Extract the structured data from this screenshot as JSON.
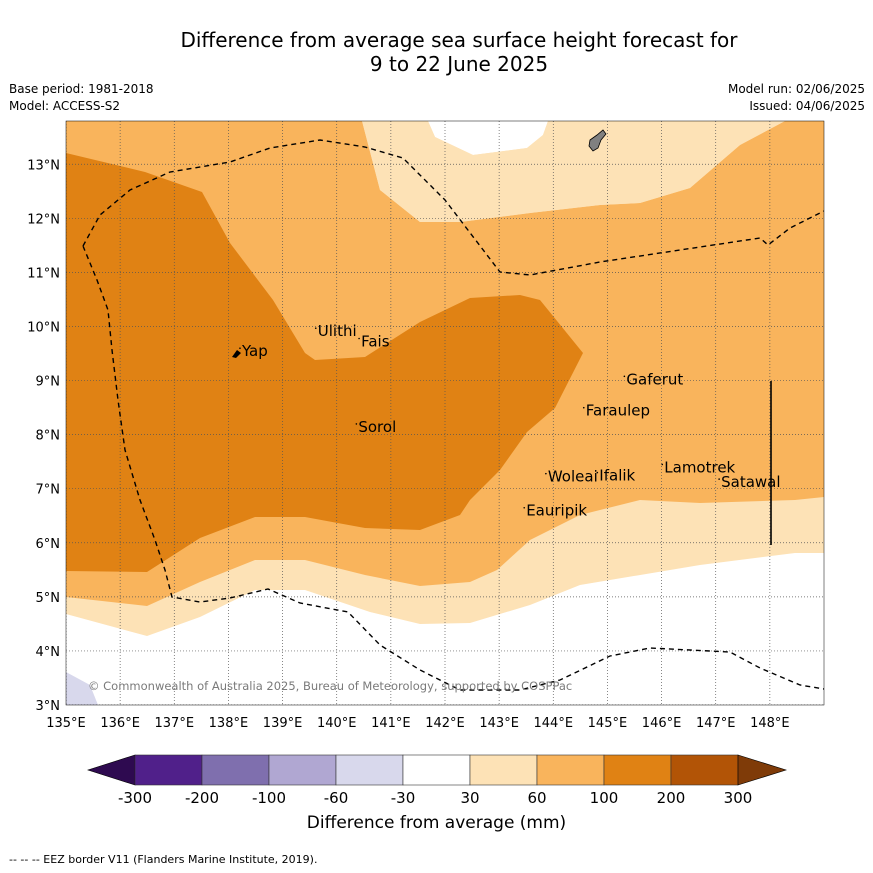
{
  "title_line1": "Difference from average sea surface height forecast for",
  "title_line2": "9 to 22 June 2025",
  "base_period": "Base period: 1981-2018",
  "model": "Model: ACCESS-S2",
  "model_run": "Model run: 02/06/2025",
  "issued": "Issued: 04/06/2025",
  "copyright": "© Commonwealth of Australia 2025, Bureau of Meteorology, supported by COSPPac",
  "map": {
    "x_ticks": [
      "135°E",
      "136°E",
      "137°E",
      "138°E",
      "139°E",
      "140°E",
      "141°E",
      "142°E",
      "143°E",
      "144°E",
      "145°E",
      "146°E",
      "147°E",
      "148°E"
    ],
    "y_ticks": [
      "3°N",
      "4°N",
      "5°N",
      "6°N",
      "7°N",
      "8°N",
      "9°N",
      "10°N",
      "11°N",
      "12°N",
      "13°N"
    ],
    "lon_range": [
      135,
      149
    ],
    "lat_range": [
      3,
      13.8
    ],
    "places": [
      {
        "name": "Yap",
        "lon": 138.25,
        "lat": 9.45
      },
      {
        "name": "Ulithi",
        "lon": 139.65,
        "lat": 9.82
      },
      {
        "name": "Fais",
        "lon": 140.45,
        "lat": 9.63
      },
      {
        "name": "Gaferut",
        "lon": 145.35,
        "lat": 8.93
      },
      {
        "name": "Faraulep",
        "lon": 144.6,
        "lat": 8.35
      },
      {
        "name": "Sorol",
        "lon": 140.4,
        "lat": 8.05
      },
      {
        "name": "Woleai",
        "lon": 143.9,
        "lat": 7.13
      },
      {
        "name": "Ifalik",
        "lon": 144.85,
        "lat": 7.15
      },
      {
        "name": "Lamotrek",
        "lon": 146.05,
        "lat": 7.3
      },
      {
        "name": "Satawal",
        "lon": 147.1,
        "lat": 7.03
      },
      {
        "name": "Eauripik",
        "lon": 143.5,
        "lat": 6.5
      }
    ]
  },
  "colorbar": {
    "title": "Difference from average (mm)",
    "labels": [
      "-300",
      "-200",
      "-100",
      "-60",
      "-30",
      "30",
      "60",
      "100",
      "200",
      "300"
    ],
    "colors": [
      "#50208a",
      "#7f6fae",
      "#b0a7d2",
      "#d8d8ec",
      "#ffffff",
      "#fde2b6",
      "#f9b45c",
      "#e08214",
      "#b25406"
    ],
    "extend_low_color": "#2e0a50",
    "extend_high_color": "#7f3b08"
  },
  "footnote": "--  --  -- EEZ border V11 (Flanders Marine Institute, 2019)."
}
